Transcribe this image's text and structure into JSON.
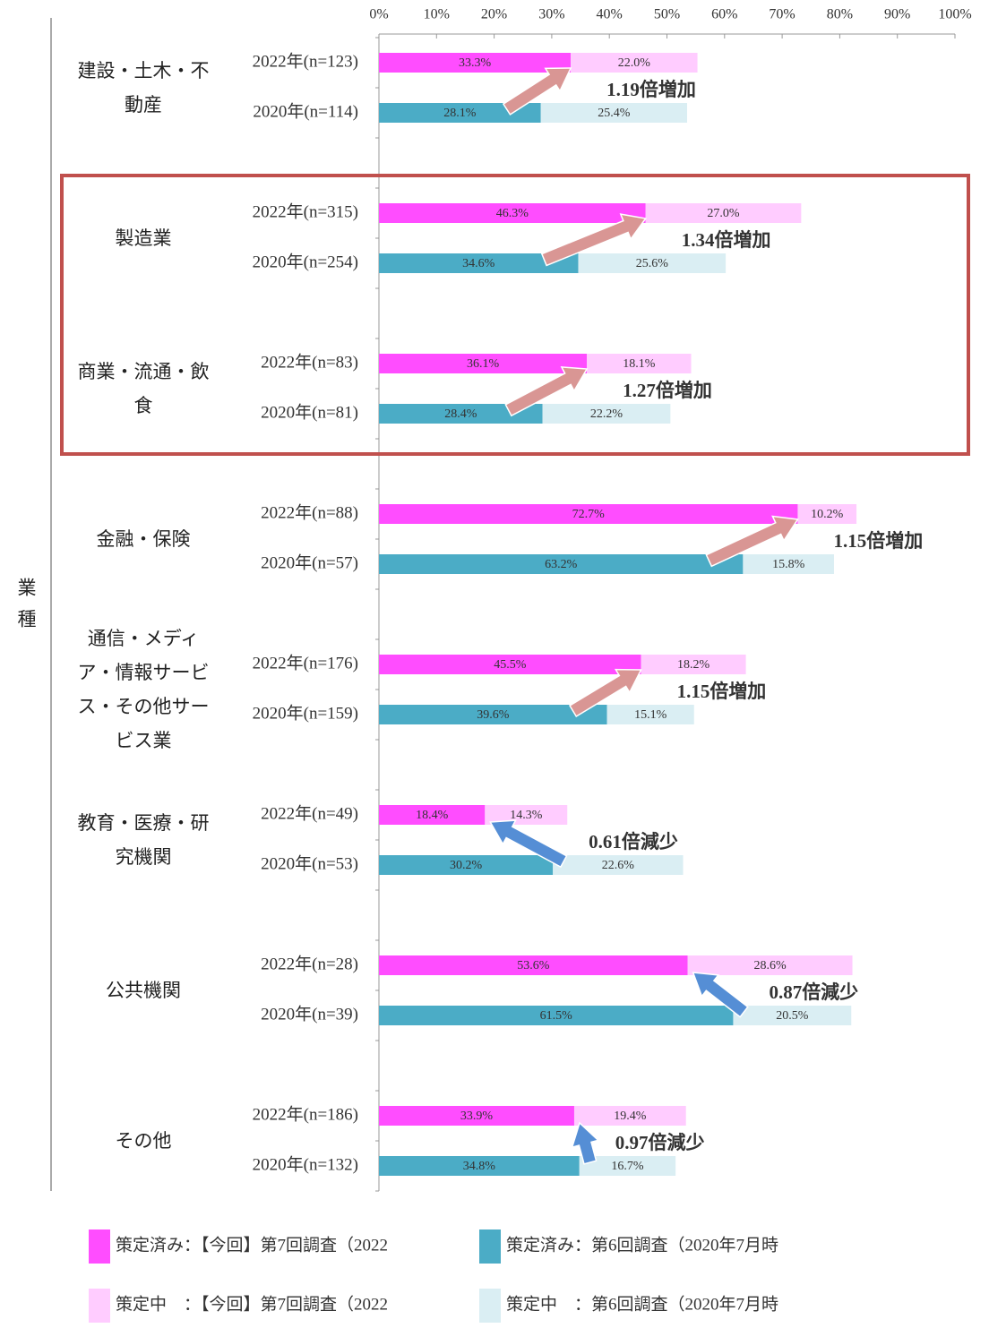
{
  "chart_data": {
    "type": "bar",
    "orientation": "horizontal",
    "stacked": true,
    "y_label": "業種",
    "xlim": [
      0,
      100
    ],
    "xticks": [
      {
        "value": 0,
        "label": "0%"
      },
      {
        "value": 10,
        "label": "10%"
      },
      {
        "value": 20,
        "label": "20%"
      },
      {
        "value": 30,
        "label": "30%"
      },
      {
        "value": 40,
        "label": "40%"
      },
      {
        "value": 50,
        "label": "50%"
      },
      {
        "value": 60,
        "label": "60%"
      },
      {
        "value": 70,
        "label": "70%"
      },
      {
        "value": 80,
        "label": "80%"
      },
      {
        "value": 90,
        "label": "90%"
      },
      {
        "value": 100,
        "label": "100%"
      }
    ],
    "categories": [
      "2022年(n=123)",
      "2020年(n=114)",
      "2022年(n=315)",
      "2020年(n=254)",
      "2022年(n=83)",
      "2020年(n=81)",
      "2022年(n=88)",
      "2020年(n=57)",
      "2022年(n=176)",
      "2020年(n=159)",
      "2022年(n=49)",
      "2020年(n=53)",
      "2022年(n=28)",
      "2020年(n=39)",
      "2022年(n=186)",
      "2020年(n=132)"
    ],
    "groups": [
      {
        "name": "建設・土木・不動産",
        "annotation": {
          "text": "1.19倍増加",
          "color": "#c0504d",
          "arrow_color": "#d99694"
        }
      },
      {
        "name": "製造業",
        "highlighted": true,
        "annotation": {
          "text": "1.34倍増加",
          "color": "#c0504d",
          "arrow_color": "#d99694"
        }
      },
      {
        "name": "商業・流通・飲食",
        "highlighted": true,
        "annotation": {
          "text": "1.27倍増加",
          "color": "#c0504d",
          "arrow_color": "#d99694"
        }
      },
      {
        "name": "金融・保険",
        "annotation": {
          "text": "1.15倍増加",
          "color": "#c0504d",
          "arrow_color": "#d99694"
        }
      },
      {
        "name": "通信・メディア・情報サービス・その他サービス業",
        "annotation": {
          "text": "1.15倍増加",
          "color": "#c0504d",
          "arrow_color": "#d99694"
        }
      },
      {
        "name": "教育・医療・研究機関",
        "annotation": {
          "text": "0.61倍減少",
          "color": "#4f81bd",
          "arrow_color": "#558ed5"
        }
      },
      {
        "name": "公共機関",
        "annotation": {
          "text": "0.87倍減少",
          "color": "#4f81bd",
          "arrow_color": "#558ed5"
        }
      },
      {
        "name": "その他",
        "annotation": {
          "text": "0.97倍減少",
          "color": "#4f81bd",
          "arrow_color": "#558ed5"
        }
      }
    ],
    "series": [
      {
        "name": "策定済み：【今回】第7回調査（2022",
        "color": "#ff4dff",
        "values": [
          33.3,
          null,
          46.3,
          null,
          36.1,
          null,
          72.7,
          null,
          45.5,
          null,
          18.4,
          null,
          53.6,
          null,
          33.9,
          null
        ],
        "value_labels": [
          "33.3%",
          null,
          "46.3%",
          null,
          "36.1%",
          null,
          "72.7%",
          null,
          "45.5%",
          null,
          "18.4%",
          null,
          "53.6%",
          null,
          "33.9%",
          null
        ]
      },
      {
        "name": "策定中　：【今回】第7回調査（2022",
        "color": "#ffccff",
        "values": [
          22.0,
          null,
          27.0,
          null,
          18.1,
          null,
          10.2,
          null,
          18.2,
          null,
          14.3,
          null,
          28.6,
          null,
          19.4,
          null
        ],
        "value_labels": [
          "22.0%",
          null,
          "27.0%",
          null,
          "18.1%",
          null,
          "10.2%",
          null,
          "18.2%",
          null,
          "14.3%",
          null,
          "28.6%",
          null,
          "19.4%",
          null
        ]
      },
      {
        "name": "策定済み：第6回調査（2020年7月時",
        "color": "#4bacc6",
        "values": [
          null,
          28.1,
          null,
          34.6,
          null,
          28.4,
          null,
          63.2,
          null,
          39.6,
          null,
          30.2,
          null,
          61.5,
          null,
          34.8
        ],
        "value_labels": [
          null,
          "28.1%",
          null,
          "34.6%",
          null,
          "28.4%",
          null,
          "63.2%",
          null,
          "39.6%",
          null,
          "30.2%",
          null,
          "61.5%",
          null,
          "34.8%"
        ]
      },
      {
        "name": "策定中　：第6回調査（2020年7月時",
        "color": "#daeef3",
        "values": [
          null,
          25.4,
          null,
          25.6,
          null,
          22.2,
          null,
          15.8,
          null,
          15.1,
          null,
          22.6,
          null,
          20.5,
          null,
          16.7
        ],
        "value_labels": [
          null,
          "25.4%",
          null,
          "25.6%",
          null,
          "22.2%",
          null,
          "15.8%",
          null,
          "15.1%",
          null,
          "22.6%",
          null,
          "20.5%",
          null,
          "16.7%"
        ]
      }
    ]
  }
}
